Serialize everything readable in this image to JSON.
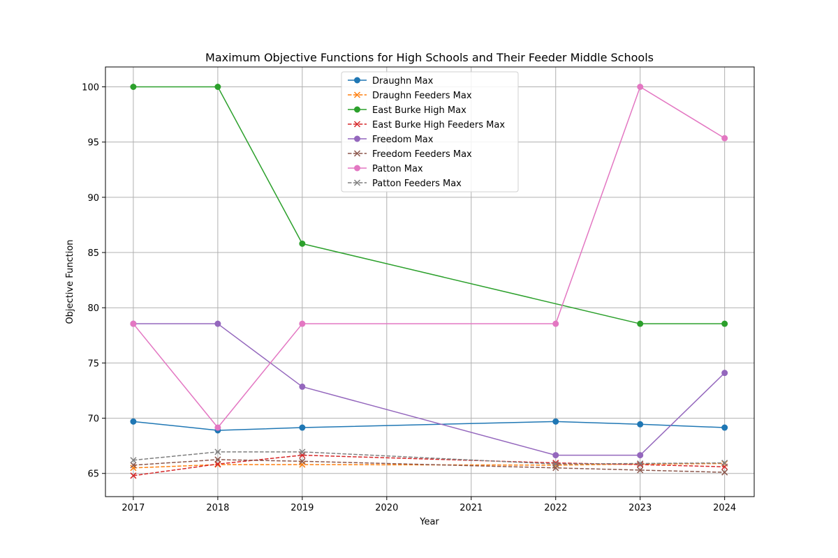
{
  "chart_data": {
    "type": "line",
    "title": "Maximum Objective Functions for High Schools and Their Feeder Middle Schools",
    "xlabel": "Year",
    "ylabel": "Objective Function",
    "xlim": [
      2016.67,
      2024.35
    ],
    "ylim": [
      62.9,
      101.8
    ],
    "xticks": [
      2017,
      2018,
      2019,
      2020,
      2021,
      2022,
      2023,
      2024
    ],
    "yticks": [
      65,
      70,
      75,
      80,
      85,
      90,
      95,
      100
    ],
    "grid": true,
    "legend_position": "upper center",
    "series": [
      {
        "name": "Draughn Max",
        "color": "#1f77b4",
        "style": "solid",
        "marker": "circle",
        "x": [
          2017,
          2018,
          2019,
          2022,
          2023,
          2024
        ],
        "y": [
          69.7,
          68.9,
          69.15,
          69.7,
          69.45,
          69.15
        ]
      },
      {
        "name": "Draughn Feeders Max",
        "color": "#ff7f0e",
        "style": "dashed",
        "marker": "x",
        "x": [
          2017,
          2018,
          2019,
          2022,
          2023,
          2024
        ],
        "y": [
          65.5,
          65.8,
          65.8,
          65.75,
          65.85,
          65.9
        ]
      },
      {
        "name": "East Burke High Max",
        "color": "#2ca02c",
        "style": "solid",
        "marker": "circle",
        "x": [
          2017,
          2018,
          2019,
          2023,
          2024
        ],
        "y": [
          100,
          100,
          85.8,
          78.55,
          78.55
        ]
      },
      {
        "name": "East Burke High Feeders Max",
        "color": "#d62728",
        "style": "dashed",
        "marker": "x",
        "x": [
          2017,
          2018,
          2019,
          2022,
          2023,
          2024
        ],
        "y": [
          64.8,
          65.85,
          66.65,
          65.95,
          65.8,
          65.6
        ]
      },
      {
        "name": "Freedom Max",
        "color": "#9467bd",
        "style": "solid",
        "marker": "circle",
        "x": [
          2017,
          2018,
          2019,
          2022,
          2023,
          2024
        ],
        "y": [
          78.55,
          78.55,
          72.85,
          66.65,
          66.65,
          74.1
        ]
      },
      {
        "name": "Freedom Feeders Max",
        "color": "#8c564b",
        "style": "dashed",
        "marker": "x",
        "x": [
          2017,
          2018,
          2019,
          2022,
          2023,
          2024
        ],
        "y": [
          65.75,
          66.25,
          66.1,
          65.5,
          65.3,
          65.1
        ]
      },
      {
        "name": "Patton Max",
        "color": "#e377c2",
        "style": "solid",
        "marker": "circle",
        "x": [
          2017,
          2018,
          2019,
          2022,
          2023,
          2024
        ],
        "y": [
          78.55,
          69.15,
          78.55,
          78.55,
          100,
          95.35
        ]
      },
      {
        "name": "Patton Feeders Max",
        "color": "#7f7f7f",
        "style": "dashed",
        "marker": "x",
        "x": [
          2017,
          2018,
          2019,
          2022,
          2023,
          2024
        ],
        "y": [
          66.2,
          66.95,
          66.95,
          65.85,
          65.9,
          65.95
        ]
      }
    ]
  }
}
